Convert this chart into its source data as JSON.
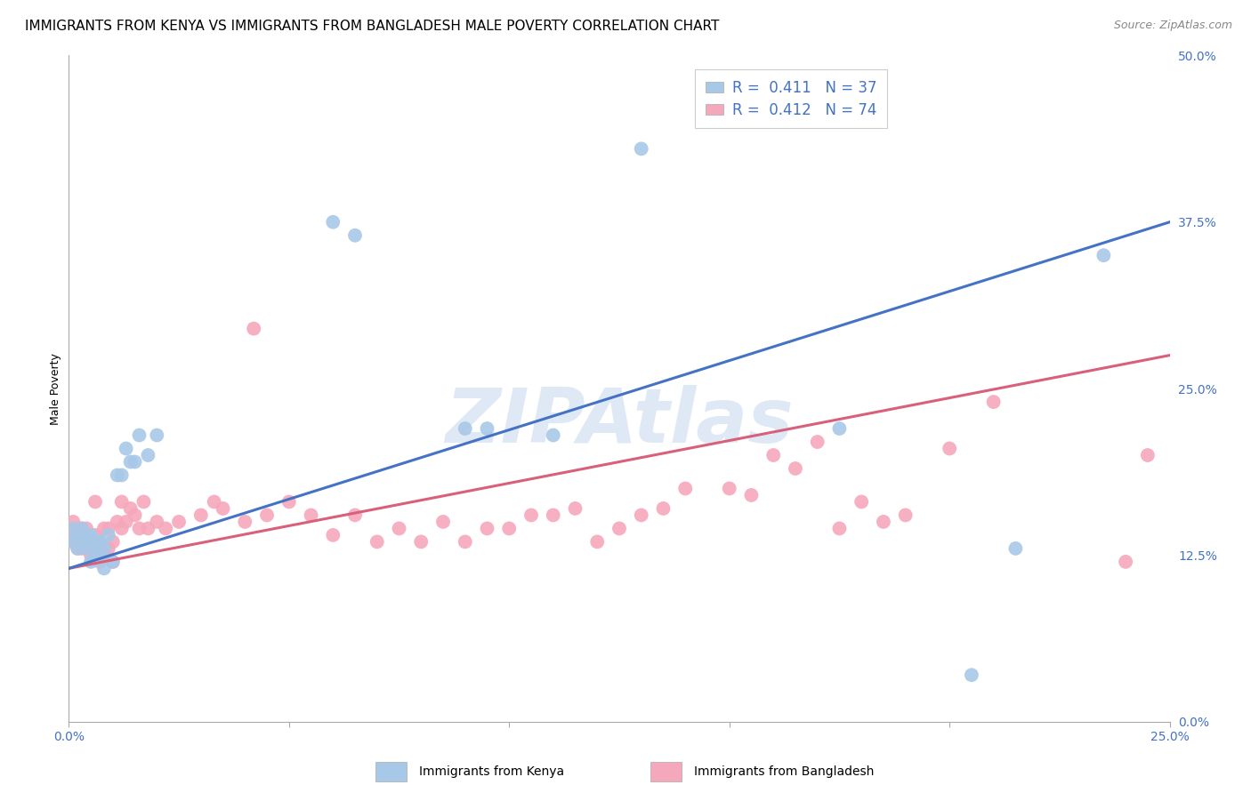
{
  "title": "IMMIGRANTS FROM KENYA VS IMMIGRANTS FROM BANGLADESH MALE POVERTY CORRELATION CHART",
  "source": "Source: ZipAtlas.com",
  "ylabel": "Male Poverty",
  "xlim": [
    0.0,
    0.25
  ],
  "ylim": [
    0.0,
    0.5
  ],
  "xticks": [
    0.0,
    0.05,
    0.1,
    0.15,
    0.2,
    0.25
  ],
  "yticks": [
    0.0,
    0.125,
    0.25,
    0.375,
    0.5
  ],
  "ytick_labels_right": [
    "0.0%",
    "12.5%",
    "25.0%",
    "37.5%",
    "50.0%"
  ],
  "kenya_R": 0.411,
  "kenya_N": 37,
  "bangladesh_R": 0.412,
  "bangladesh_N": 74,
  "kenya_color": "#a8c8e8",
  "bangladesh_color": "#f5a8bc",
  "kenya_line_color": "#4472C4",
  "bangladesh_line_color": "#d9607a",
  "kenya_x": [
    0.001,
    0.001,
    0.002,
    0.002,
    0.003,
    0.003,
    0.004,
    0.004,
    0.005,
    0.005,
    0.005,
    0.006,
    0.006,
    0.007,
    0.007,
    0.008,
    0.008,
    0.009,
    0.01,
    0.011,
    0.012,
    0.013,
    0.014,
    0.015,
    0.016,
    0.018,
    0.02,
    0.06,
    0.065,
    0.09,
    0.095,
    0.11,
    0.13,
    0.175,
    0.205,
    0.215,
    0.235
  ],
  "kenya_y": [
    0.135,
    0.145,
    0.14,
    0.13,
    0.145,
    0.135,
    0.14,
    0.13,
    0.135,
    0.14,
    0.12,
    0.135,
    0.125,
    0.135,
    0.125,
    0.13,
    0.115,
    0.14,
    0.12,
    0.185,
    0.185,
    0.205,
    0.195,
    0.195,
    0.215,
    0.2,
    0.215,
    0.375,
    0.365,
    0.22,
    0.22,
    0.215,
    0.43,
    0.22,
    0.035,
    0.13,
    0.35
  ],
  "bangladesh_x": [
    0.001,
    0.001,
    0.001,
    0.002,
    0.002,
    0.002,
    0.003,
    0.003,
    0.003,
    0.004,
    0.004,
    0.005,
    0.005,
    0.006,
    0.006,
    0.006,
    0.007,
    0.007,
    0.008,
    0.008,
    0.009,
    0.009,
    0.01,
    0.01,
    0.011,
    0.012,
    0.012,
    0.013,
    0.014,
    0.015,
    0.016,
    0.017,
    0.018,
    0.02,
    0.022,
    0.025,
    0.03,
    0.033,
    0.035,
    0.04,
    0.042,
    0.045,
    0.05,
    0.055,
    0.06,
    0.065,
    0.07,
    0.075,
    0.08,
    0.085,
    0.09,
    0.095,
    0.1,
    0.105,
    0.11,
    0.115,
    0.12,
    0.125,
    0.13,
    0.135,
    0.14,
    0.15,
    0.155,
    0.16,
    0.165,
    0.17,
    0.175,
    0.18,
    0.185,
    0.19,
    0.2,
    0.21,
    0.24,
    0.245
  ],
  "bangladesh_y": [
    0.14,
    0.15,
    0.135,
    0.145,
    0.13,
    0.14,
    0.135,
    0.13,
    0.145,
    0.135,
    0.145,
    0.135,
    0.125,
    0.14,
    0.135,
    0.165,
    0.12,
    0.135,
    0.145,
    0.125,
    0.13,
    0.145,
    0.135,
    0.12,
    0.15,
    0.145,
    0.165,
    0.15,
    0.16,
    0.155,
    0.145,
    0.165,
    0.145,
    0.15,
    0.145,
    0.15,
    0.155,
    0.165,
    0.16,
    0.15,
    0.295,
    0.155,
    0.165,
    0.155,
    0.14,
    0.155,
    0.135,
    0.145,
    0.135,
    0.15,
    0.135,
    0.145,
    0.145,
    0.155,
    0.155,
    0.16,
    0.135,
    0.145,
    0.155,
    0.16,
    0.175,
    0.175,
    0.17,
    0.2,
    0.19,
    0.21,
    0.145,
    0.165,
    0.15,
    0.155,
    0.205,
    0.24,
    0.12,
    0.2
  ],
  "kenya_line_x0": 0.0,
  "kenya_line_y0": 0.115,
  "kenya_line_x1": 0.25,
  "kenya_line_y1": 0.375,
  "bangladesh_line_x0": 0.0,
  "bangladesh_line_y0": 0.115,
  "bangladesh_line_x1": 0.25,
  "bangladesh_line_y1": 0.275,
  "watermark": "ZIPAtlas",
  "background_color": "#ffffff",
  "grid_color": "#d0d0d0",
  "title_fontsize": 11,
  "axis_fontsize": 9,
  "tick_fontsize": 10,
  "legend_fontsize": 12
}
